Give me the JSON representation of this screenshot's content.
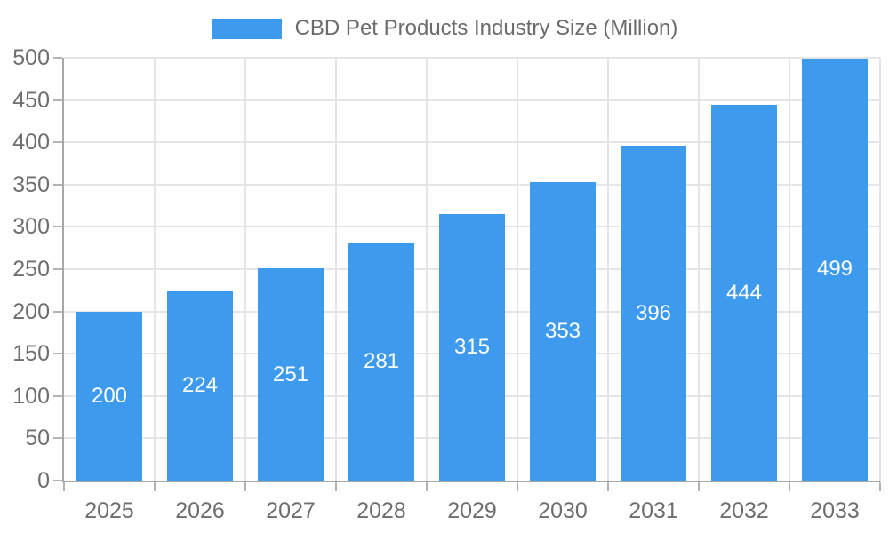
{
  "legend": {
    "label": "CBD Pet Products Industry Size (Million)"
  },
  "chart_data": {
    "type": "bar",
    "title": "CBD Pet Products Industry Size (Million)",
    "categories": [
      "2025",
      "2026",
      "2027",
      "2028",
      "2029",
      "2030",
      "2031",
      "2032",
      "2033"
    ],
    "values": [
      200,
      224,
      251,
      281,
      315,
      353,
      396,
      444,
      499
    ],
    "xlabel": "",
    "ylabel": "",
    "ylim": [
      0,
      500
    ],
    "yticks": [
      0,
      50,
      100,
      150,
      200,
      250,
      300,
      350,
      400,
      450,
      500
    ],
    "grid": true,
    "legend_position": "top",
    "colors": {
      "bar": "#3d9aec",
      "value_label": "#ffffff",
      "axis": "#a8a8a8",
      "tick": "#b3b3b3",
      "grid": "#e5e5e5",
      "text": "#6e6e6e"
    }
  }
}
